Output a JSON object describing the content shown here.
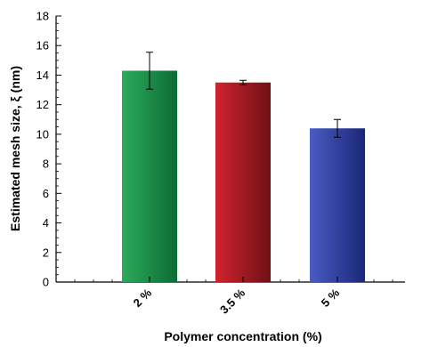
{
  "chart_data": {
    "type": "bar",
    "title": "",
    "xlabel": "Polymer concentration (%)",
    "ylabel": "Estimated mesh size, ξ (nm)",
    "ylim": [
      0,
      18
    ],
    "yticks": [
      0,
      2,
      4,
      6,
      8,
      10,
      12,
      14,
      16,
      18
    ],
    "categories": [
      "2 %",
      "3.5 %",
      "5 %"
    ],
    "values": [
      14.3,
      13.5,
      10.4
    ],
    "errors": [
      1.25,
      0.15,
      0.6
    ],
    "bar_colors": [
      {
        "dark": "#0d6b34",
        "light": "#2cab5b"
      },
      {
        "dark": "#6e1016",
        "light": "#d1232d"
      },
      {
        "dark": "#1a2778",
        "light": "#4a5cc4"
      }
    ],
    "grid": false,
    "legend": "none"
  }
}
